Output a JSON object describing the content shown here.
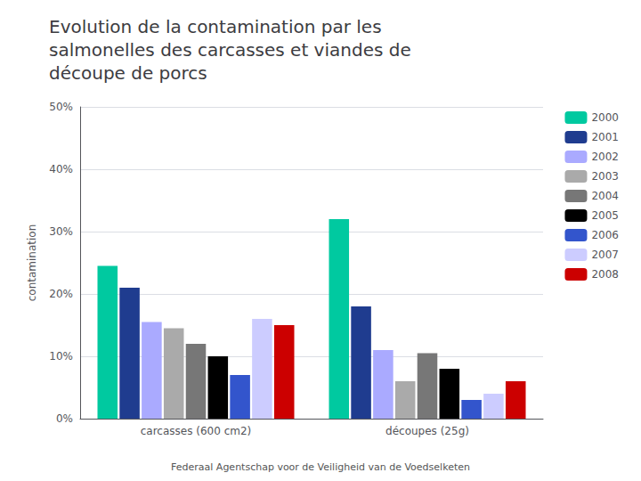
{
  "chart_data": {
    "type": "bar",
    "title": "Evolution de la contamination par les\nsalmonelles des carcasses et viandes de\ndécoupe de porcs",
    "ylabel": "contamination",
    "annotations": [
      "Federaal Agentschap voor de Veiligheid van de Voedselketen"
    ],
    "categories": [
      "carcasses (600 cm2)",
      "découpes (25g)"
    ],
    "series": [
      {
        "name": "2000",
        "color": "#00C9A0",
        "values": [
          24.5,
          32.0
        ]
      },
      {
        "name": "2001",
        "color": "#1F3C8F",
        "values": [
          21.0,
          18.0
        ]
      },
      {
        "name": "2002",
        "color": "#AAAAFF",
        "values": [
          15.5,
          11.0
        ]
      },
      {
        "name": "2003",
        "color": "#AAAAAA",
        "values": [
          14.5,
          6.0
        ]
      },
      {
        "name": "2004",
        "color": "#777777",
        "values": [
          12.0,
          10.5
        ]
      },
      {
        "name": "2005",
        "color": "#000000",
        "values": [
          10.0,
          8.0
        ]
      },
      {
        "name": "2006",
        "color": "#3355CC",
        "values": [
          7.0,
          3.0
        ]
      },
      {
        "name": "2007",
        "color": "#CCCCFF",
        "values": [
          16.0,
          4.0
        ]
      },
      {
        "name": "2008",
        "color": "#CC0000",
        "values": [
          15.0,
          6.0
        ]
      }
    ],
    "ylim": [
      0,
      50
    ],
    "yticks": [
      {
        "value": 0,
        "label": "0%"
      },
      {
        "value": 10,
        "label": "10%"
      },
      {
        "value": 20,
        "label": "20%"
      },
      {
        "value": 30,
        "label": "30%"
      },
      {
        "value": 40,
        "label": "40%"
      },
      {
        "value": 50,
        "label": "50%"
      }
    ],
    "grid": true,
    "legend": "right"
  }
}
